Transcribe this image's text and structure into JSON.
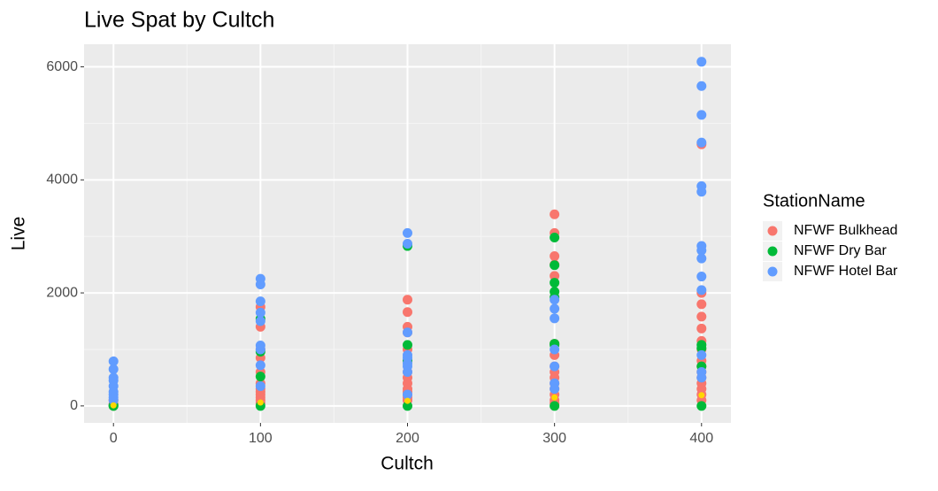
{
  "chart_data": {
    "type": "scatter",
    "title": "Live Spat by Cultch",
    "x_label": "Cultch",
    "y_label": "Live",
    "legend_title": "StationName",
    "legend_position": "right",
    "grid": true,
    "xlim": [
      -20,
      420
    ],
    "xticks": [
      0,
      100,
      200,
      300,
      400
    ],
    "xminor": [
      50,
      150,
      250,
      350
    ],
    "ylim": [
      -300,
      6400
    ],
    "yticks": [
      0,
      2000,
      4000,
      6000
    ],
    "yminor": [
      1000,
      3000,
      5000
    ],
    "series": [
      {
        "name": "NFWF Bulkhead",
        "color": "#F8766D",
        "x": [
          0,
          0,
          0,
          100,
          100,
          100,
          100,
          100,
          100,
          100,
          100,
          100,
          100,
          100,
          100,
          200,
          200,
          200,
          200,
          200,
          200,
          200,
          200,
          200,
          200,
          200,
          200,
          200,
          200,
          300,
          300,
          300,
          300,
          300,
          300,
          300,
          300,
          300,
          300,
          300,
          300,
          300,
          300,
          300,
          400,
          400,
          400,
          400,
          400,
          400,
          400,
          400,
          400,
          400,
          400,
          400,
          400,
          400,
          400
        ],
        "values": [
          0,
          30,
          100,
          1750,
          1400,
          1000,
          850,
          600,
          400,
          300,
          250,
          200,
          150,
          100,
          50,
          1880,
          1660,
          1400,
          1300,
          1000,
          800,
          600,
          500,
          400,
          300,
          250,
          200,
          150,
          100,
          3390,
          3060,
          2650,
          2500,
          2300,
          1100,
          900,
          700,
          600,
          500,
          400,
          300,
          200,
          100,
          50,
          4630,
          2000,
          1800,
          1580,
          1370,
          1150,
          1000,
          800,
          700,
          600,
          500,
          400,
          300,
          200,
          100
        ]
      },
      {
        "name": "NFWF Dry Bar",
        "color": "#00BA38",
        "x": [
          0,
          0,
          100,
          100,
          100,
          100,
          200,
          200,
          200,
          200,
          300,
          300,
          300,
          300,
          300,
          300,
          300,
          300,
          400,
          400,
          400,
          400
        ],
        "values": [
          0,
          10,
          1540,
          960,
          520,
          0,
          2830,
          1080,
          800,
          0,
          2980,
          2490,
          2180,
          2020,
          1920,
          1100,
          1080,
          0,
          1080,
          1020,
          700,
          0
        ]
      },
      {
        "name": "NFWF Hotel Bar",
        "color": "#619CFF",
        "x": [
          0,
          0,
          0,
          0,
          0,
          0,
          0,
          0,
          0,
          100,
          100,
          100,
          100,
          100,
          100,
          100,
          100,
          100,
          200,
          200,
          200,
          200,
          200,
          200,
          200,
          200,
          200,
          300,
          300,
          300,
          300,
          300,
          300,
          300,
          400,
          400,
          400,
          400,
          400,
          400,
          400,
          400,
          400,
          400,
          400,
          400,
          400,
          400
        ],
        "values": [
          790,
          650,
          500,
          450,
          350,
          250,
          200,
          150,
          100,
          2250,
          2150,
          1850,
          1650,
          1500,
          1070,
          1000,
          720,
          350,
          3060,
          2870,
          1300,
          900,
          850,
          750,
          700,
          600,
          200,
          1880,
          1720,
          1550,
          1000,
          700,
          400,
          300,
          6090,
          5660,
          5150,
          4660,
          3890,
          3790,
          2830,
          2750,
          2610,
          2290,
          2050,
          900,
          600,
          500
        ]
      },
      {
        "color": "#FFD700",
        "size": "small",
        "x": [
          0,
          100,
          200,
          300,
          400
        ],
        "values": [
          10,
          60,
          90,
          150,
          190
        ]
      }
    ]
  }
}
